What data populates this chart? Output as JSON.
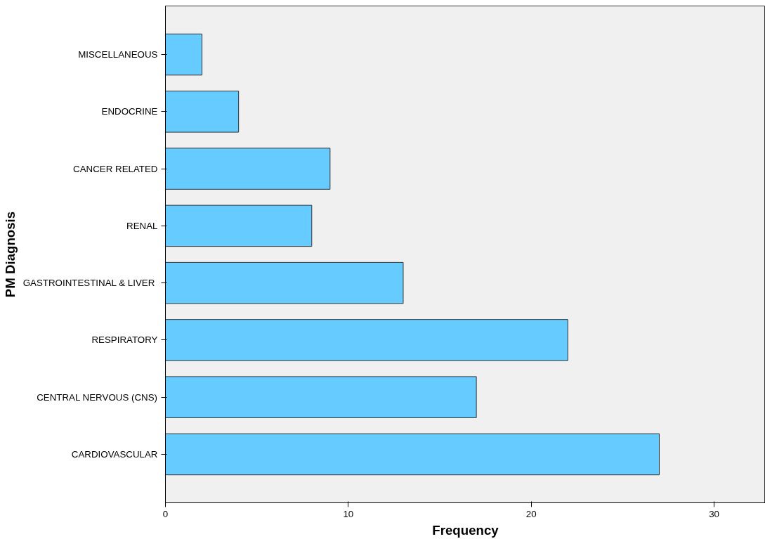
{
  "chart_data": {
    "type": "bar",
    "orientation": "horizontal",
    "xlabel": "Frequency",
    "ylabel": "PM Diagnosis",
    "categories": [
      "MISCELLANEOUS",
      "ENDOCRINE",
      "CANCER RELATED",
      "RENAL",
      "GASTROINTESTINAL  & LIVER",
      "RESPIRATORY",
      "CENTRAL NERVOUS (CNS)",
      "CARDIOVASCULAR"
    ],
    "values": [
      2,
      4,
      9,
      8,
      13,
      22,
      17,
      27
    ],
    "color": "#66ccff",
    "xlim": [
      0,
      32.8
    ],
    "xticks": [
      0,
      10,
      20,
      30
    ],
    "grid": false
  }
}
